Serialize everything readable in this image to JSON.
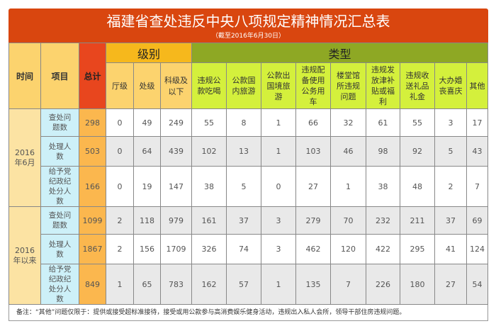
{
  "title": "福建省查处违反中央八项规定精神情况汇总表",
  "subtitle": "（截至2016年6月30日）",
  "headers": {
    "time": "时间",
    "item": "项目",
    "total": "总计",
    "level_group": "级别",
    "type_group": "类型",
    "levels": [
      "厅级",
      "处级",
      "科级及以下"
    ],
    "types": [
      "违规公款吃喝",
      "公款国内旅游",
      "公款出国境旅游",
      "违规配备使用公务用车",
      "楼堂馆所违规问题",
      "违规发放津补贴或福利",
      "违规收送礼品礼金",
      "大办婚丧喜庆",
      "其他"
    ]
  },
  "groups": [
    {
      "time": "2016年6月",
      "rows": [
        {
          "item": "查处问题数",
          "total": "298",
          "values": [
            "0",
            "49",
            "249",
            "55",
            "8",
            "1",
            "66",
            "32",
            "61",
            "55",
            "3",
            "17"
          ]
        },
        {
          "item": "处理人数",
          "total": "503",
          "values": [
            "0",
            "64",
            "439",
            "102",
            "13",
            "1",
            "103",
            "46",
            "98",
            "92",
            "5",
            "43"
          ]
        },
        {
          "item": "给予党纪政纪处分人数",
          "total": "166",
          "values": [
            "0",
            "19",
            "147",
            "38",
            "5",
            "0",
            "27",
            "1",
            "38",
            "48",
            "2",
            "7"
          ]
        }
      ]
    },
    {
      "time": "2016年以来",
      "rows": [
        {
          "item": "查处问题数",
          "total": "1099",
          "values": [
            "2",
            "118",
            "979",
            "161",
            "37",
            "3",
            "279",
            "70",
            "232",
            "211",
            "37",
            "69"
          ]
        },
        {
          "item": "处理人数",
          "total": "1867",
          "values": [
            "2",
            "156",
            "1709",
            "326",
            "74",
            "3",
            "462",
            "120",
            "422",
            "295",
            "41",
            "124"
          ]
        },
        {
          "item": "给予党纪政纪处分人数",
          "total": "849",
          "values": [
            "1",
            "65",
            "783",
            "162",
            "57",
            "1",
            "135",
            "7",
            "226",
            "180",
            "27",
            "54"
          ]
        }
      ]
    }
  ],
  "note": "备注：“其他”问题仅限于：提供或接受超标准接待，接受或用公款参与高消费娱乐健身活动，违规出入私人会所，领导干部住房违规问题。"
}
